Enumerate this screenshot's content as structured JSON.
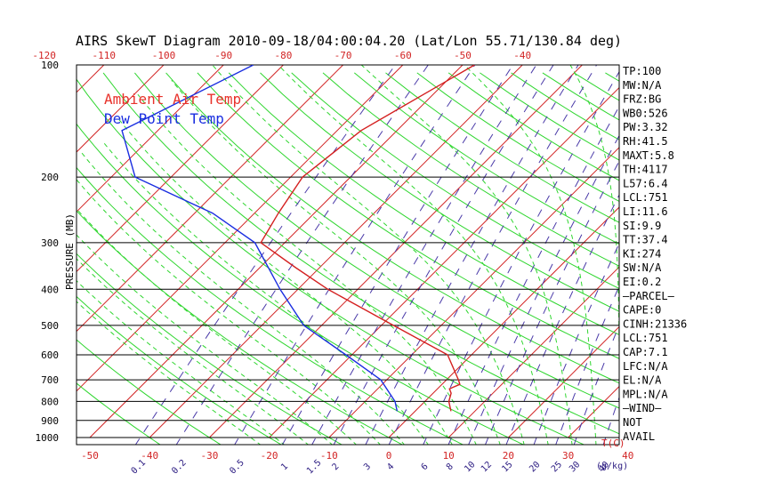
{
  "chart_data": {
    "type": "line",
    "title": "AIRS SkewT Diagram 2010-09-18/04:00:04.20 (Lat/Lon 55.71/130.84 deg)",
    "ylabel": "PRESSURE (MB)",
    "pressure_ticks": [
      100,
      200,
      300,
      400,
      500,
      600,
      700,
      800,
      900,
      1000
    ],
    "temp_ticks_top": [
      -120,
      -110,
      -100,
      -90,
      -80,
      -70,
      -60,
      -50,
      -40
    ],
    "temp_ticks_bottom": [
      -50,
      -40,
      -30,
      -20,
      -10,
      0,
      10,
      20,
      30,
      40
    ],
    "temp_unit_label": "T(C)",
    "mixing_ratio_label": "(g/kg)",
    "mixing_ratio_ticks": [
      "0.1",
      "0.2",
      "0.5",
      "1",
      "1.5",
      "2",
      "3",
      "4",
      "6",
      "8",
      "10",
      "12",
      "15",
      "20",
      "25",
      "30",
      "40"
    ],
    "legend": [
      {
        "label": "Ambient Air Temp",
        "color": "#e8322b"
      },
      {
        "label": "Dew Point Temp",
        "color": "#1a2ee0"
      }
    ],
    "series": [
      {
        "name": "Ambient Air Temp",
        "color": "#d42020",
        "points": [
          {
            "p": 100,
            "t": -48
          },
          {
            "p": 150,
            "t": -56
          },
          {
            "p": 200,
            "t": -58
          },
          {
            "p": 250,
            "t": -56
          },
          {
            "p": 300,
            "t": -54
          },
          {
            "p": 350,
            "t": -44
          },
          {
            "p": 400,
            "t": -35
          },
          {
            "p": 500,
            "t": -18
          },
          {
            "p": 600,
            "t": -4
          },
          {
            "p": 700,
            "t": 2
          },
          {
            "p": 720,
            "t": 3
          },
          {
            "p": 740,
            "t": 2
          },
          {
            "p": 760,
            "t": 3
          },
          {
            "p": 800,
            "t": 4
          },
          {
            "p": 850,
            "t": 6
          }
        ]
      },
      {
        "name": "Dew Point Temp",
        "color": "#1a2ee0",
        "points": [
          {
            "p": 100,
            "t": -85
          },
          {
            "p": 150,
            "t": -96
          },
          {
            "p": 200,
            "t": -86
          },
          {
            "p": 250,
            "t": -67
          },
          {
            "p": 300,
            "t": -55
          },
          {
            "p": 400,
            "t": -43
          },
          {
            "p": 500,
            "t": -33
          },
          {
            "p": 600,
            "t": -21
          },
          {
            "p": 700,
            "t": -11
          },
          {
            "p": 800,
            "t": -5
          },
          {
            "p": 850,
            "t": -3
          }
        ]
      }
    ]
  },
  "indices": [
    "TP:100",
    "MW:N/A",
    "FRZ:BG",
    "WB0:526",
    "PW:3.32",
    "RH:41.5",
    "MAXT:5.8",
    "TH:4117",
    "L57:6.4",
    "LCL:751",
    "LI:11.6",
    "SI:9.9",
    "TT:37.4",
    "KI:274",
    "SW:N/A",
    "EI:0.2",
    "—PARCEL—",
    "CAPE:0",
    "CINH:21336",
    "LCL:751",
    "CAP:7.1",
    "LFC:N/A",
    "EL:N/A",
    "MPL:N/A",
    "—WIND—",
    "NOT",
    "AVAIL"
  ]
}
